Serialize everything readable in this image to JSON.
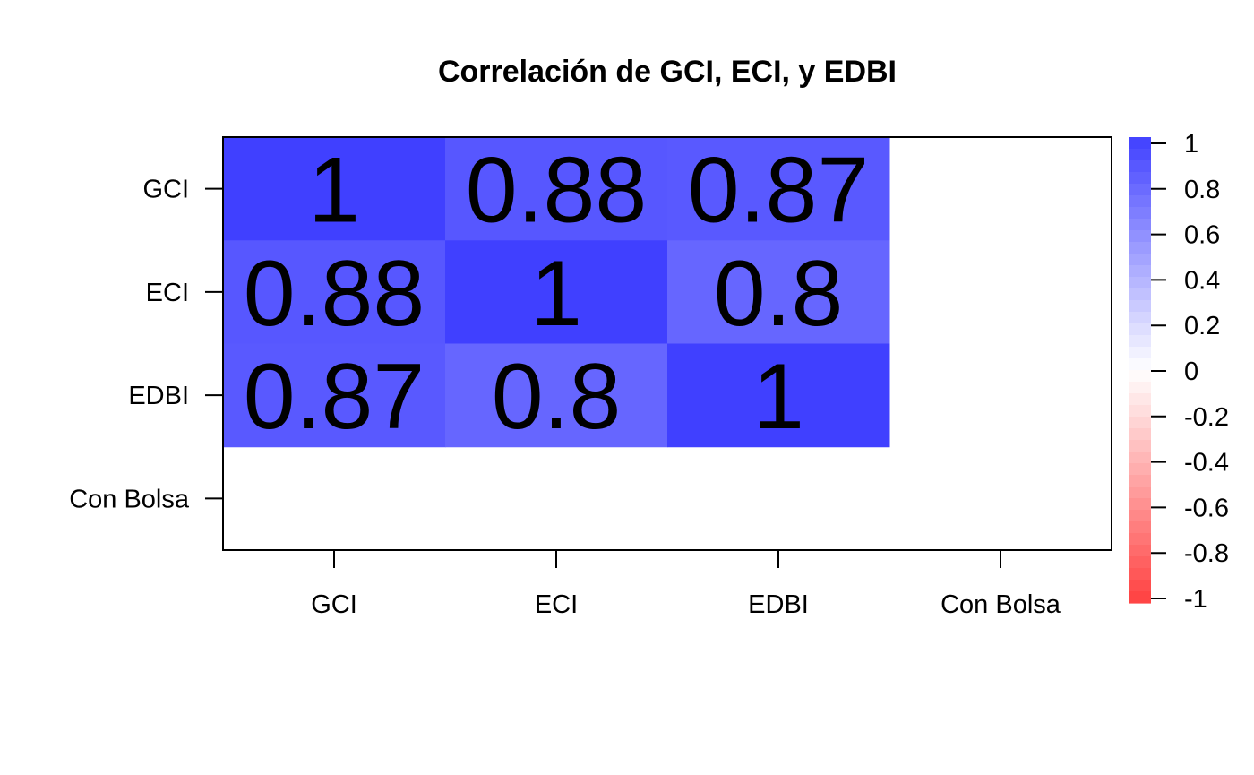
{
  "chart_data": {
    "type": "heatmap",
    "title": "Correlación de GCI, ECI, y EDBI",
    "row_labels": [
      "GCI",
      "ECI",
      "EDBI",
      "Con Bolsa"
    ],
    "col_labels": [
      "GCI",
      "ECI",
      "EDBI",
      "Con Bolsa"
    ],
    "values": [
      [
        1,
        0.88,
        0.87,
        null
      ],
      [
        0.88,
        1,
        0.8,
        null
      ],
      [
        0.87,
        0.8,
        1,
        null
      ],
      [
        null,
        null,
        null,
        null
      ]
    ],
    "cell_text": [
      [
        "1",
        "0.88",
        "0.87",
        ""
      ],
      [
        "0.88",
        "1",
        "0.8",
        ""
      ],
      [
        "0.87",
        "0.8",
        "1",
        ""
      ],
      [
        "",
        "",
        "",
        ""
      ]
    ],
    "colorbar": {
      "range": [
        -1,
        1
      ],
      "tick_labels": [
        "1",
        "0.8",
        "0.6",
        "0.4",
        "0.2",
        "0",
        "-0.2",
        "-0.4",
        "-0.6",
        "-0.8",
        "-1"
      ],
      "tick_values": [
        1,
        0.8,
        0.6,
        0.4,
        0.2,
        0,
        -0.2,
        -0.4,
        -0.6,
        -0.8,
        -1
      ],
      "positive_color": "#4040ff",
      "negative_color": "#ff4040",
      "zero_color": "#ffffff"
    }
  }
}
